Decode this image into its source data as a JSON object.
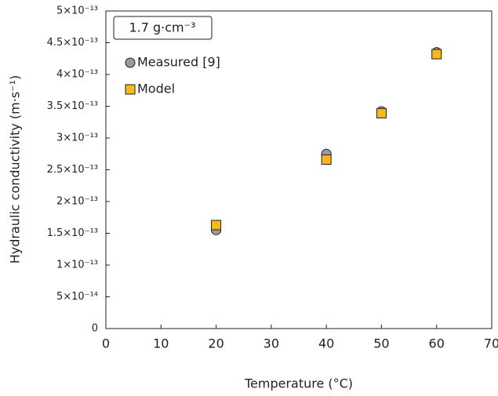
{
  "chart_data": {
    "type": "scatter",
    "xlabel": "Temperature (°C)",
    "ylabel": "Hydraulic conductivity (m·s⁻¹)",
    "annotation": "1.7 g·cm⁻³",
    "x": [
      20,
      40,
      50,
      60
    ],
    "series": [
      {
        "name": "Measured [9]",
        "color": "#9b9b9b",
        "marker": "circle",
        "values": [
          1.55e-13,
          2.75e-13,
          3.42e-13,
          4.35e-13
        ]
      },
      {
        "name": "Model",
        "color": "#f7b917",
        "marker": "square",
        "values": [
          1.63e-13,
          2.66e-13,
          3.39e-13,
          4.32e-13
        ]
      }
    ],
    "xlim": [
      0,
      70
    ],
    "xticks": [
      0,
      10,
      20,
      30,
      40,
      50,
      60,
      70
    ],
    "ylim": [
      0,
      5e-13
    ],
    "yticks": [
      0,
      {
        "value": 5e-14,
        "label": "5×10⁻¹⁴"
      },
      {
        "value": 1e-13,
        "label": "1×10⁻¹³"
      },
      {
        "value": 1.5e-13,
        "label": "1.5×10⁻¹³"
      },
      {
        "value": 2e-13,
        "label": "2×10⁻¹³"
      },
      {
        "value": 2.5e-13,
        "label": "2.5×10⁻¹³"
      },
      {
        "value": 3e-13,
        "label": "3×10⁻¹³"
      },
      {
        "value": 3.5e-13,
        "label": "3.5×10⁻¹³"
      },
      {
        "value": 4e-13,
        "label": "4×10⁻¹³"
      },
      {
        "value": 4.5e-13,
        "label": "4.5×10⁻¹³"
      },
      {
        "value": 5e-13,
        "label": "5×10⁻¹³"
      }
    ],
    "grid": false,
    "legend": "upper left"
  }
}
